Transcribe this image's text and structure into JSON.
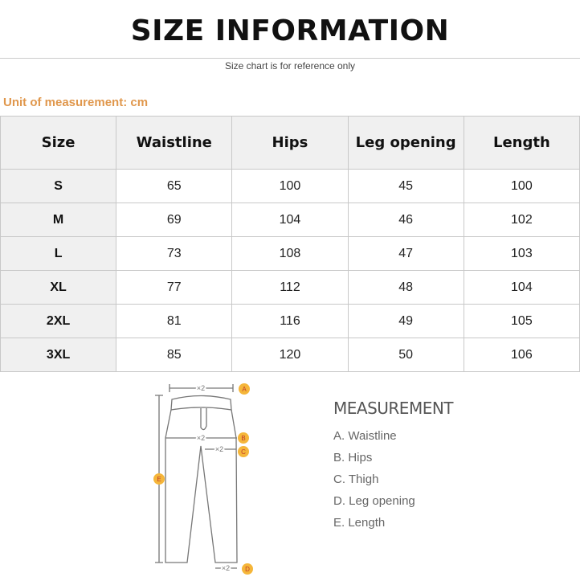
{
  "title": "SIZE INFORMATION",
  "subtitle": "Size chart is for reference only",
  "unit_label": "Unit of measurement: cm",
  "accent_color": "#e0974c",
  "table": {
    "headers": [
      "Size",
      "Waistline",
      "Hips",
      "Leg opening",
      "Length"
    ],
    "rows": [
      [
        "S",
        "65",
        "100",
        "45",
        "100"
      ],
      [
        "M",
        "69",
        "104",
        "46",
        "102"
      ],
      [
        "L",
        "73",
        "108",
        "47",
        "103"
      ],
      [
        "XL",
        "77",
        "112",
        "48",
        "104"
      ],
      [
        "2XL",
        "81",
        "116",
        "49",
        "105"
      ],
      [
        "3XL",
        "85",
        "120",
        "50",
        "106"
      ]
    ]
  },
  "diagram": {
    "markers": [
      "A",
      "B",
      "C",
      "D",
      "E"
    ],
    "multiplier": "×2"
  },
  "measurement": {
    "heading": "MEASUREMENT",
    "items": [
      "A. Waistline",
      "B. Hips",
      "C. Thigh",
      "D. Leg opening",
      "E. Length"
    ]
  }
}
